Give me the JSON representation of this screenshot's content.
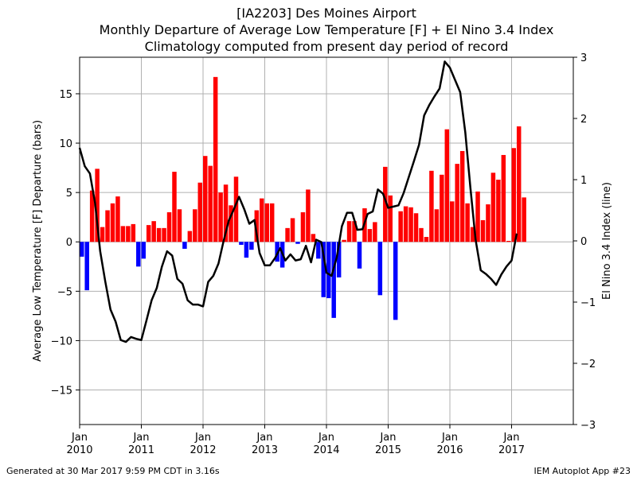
{
  "chart_data": {
    "type": "bar",
    "title": "[IA2203] Des Moines Airport",
    "subtitle": "Monthly Departure of Average Low Temperature [F] + El Nino 3.4 Index",
    "subtitle2": "Climatology computed from present day period of record",
    "ylabel_left": "Average Low Temperature [F] Departure (bars)",
    "ylabel_right": "El Nino 3.4 Index (line)",
    "ylim_left": [
      -18.5,
      18.7
    ],
    "ylim_right": [
      -3,
      3
    ],
    "yticks_left": [
      -15,
      -10,
      -5,
      0,
      5,
      10,
      15
    ],
    "yticks_right": [
      -3,
      -2,
      -1,
      0,
      1,
      2,
      3
    ],
    "xlim": [
      "2010-01",
      "2018-01"
    ],
    "xticks": [
      {
        "month": "2010-01",
        "label1": "Jan",
        "label2": "2010"
      },
      {
        "month": "2011-01",
        "label1": "Jan",
        "label2": "2011"
      },
      {
        "month": "2012-01",
        "label1": "Jan",
        "label2": "2012"
      },
      {
        "month": "2013-01",
        "label1": "Jan",
        "label2": "2013"
      },
      {
        "month": "2014-01",
        "label1": "Jan",
        "label2": "2014"
      },
      {
        "month": "2015-01",
        "label1": "Jan",
        "label2": "2015"
      },
      {
        "month": "2016-01",
        "label1": "Jan",
        "label2": "2016"
      },
      {
        "month": "2017-01",
        "label1": "Jan",
        "label2": "2017"
      }
    ],
    "grid": true,
    "colors": {
      "positive": "#ff0000",
      "negative": "#0000ff",
      "line": "#000000"
    },
    "bars": {
      "start_month": "2010-01",
      "values": [
        -1.5,
        -4.9,
        5.2,
        7.4,
        1.5,
        3.2,
        3.9,
        4.6,
        1.6,
        1.6,
        1.8,
        -2.5,
        -1.7,
        1.7,
        2.1,
        1.4,
        1.4,
        3.0,
        7.1,
        3.3,
        -0.7,
        1.1,
        3.3,
        6.0,
        8.7,
        7.7,
        16.7,
        5.0,
        5.8,
        3.7,
        6.6,
        -0.3,
        -1.6,
        -0.8,
        3.2,
        4.4,
        3.9,
        3.9,
        -2.0,
        -2.6,
        1.4,
        2.4,
        -0.2,
        3.0,
        5.3,
        0.8,
        -1.7,
        -5.6,
        -5.7,
        -7.7,
        -3.6,
        0.2,
        2.1,
        2.1,
        -2.7,
        3.4,
        1.3,
        2.0,
        -5.4,
        7.6,
        4.7,
        -7.9,
        3.1,
        3.6,
        3.5,
        2.9,
        1.4,
        0.5,
        7.2,
        3.3,
        6.8,
        11.4,
        4.1,
        7.9,
        9.2,
        3.9,
        1.5,
        5.1,
        2.2,
        3.8,
        7.0,
        6.3,
        8.8,
        0.1,
        9.5,
        11.7,
        4.5
      ]
    },
    "line": {
      "start_month": "2010-01",
      "values": [
        1.52,
        1.22,
        1.1,
        0.62,
        -0.17,
        -0.67,
        -1.12,
        -1.32,
        -1.62,
        -1.65,
        -1.57,
        -1.6,
        -1.62,
        -1.3,
        -0.97,
        -0.77,
        -0.42,
        -0.17,
        -0.24,
        -0.62,
        -0.7,
        -0.97,
        -1.04,
        -1.04,
        -1.07,
        -0.67,
        -0.57,
        -0.37,
        0.0,
        0.33,
        0.52,
        0.72,
        0.52,
        0.28,
        0.34,
        -0.2,
        -0.4,
        -0.4,
        -0.28,
        -0.12,
        -0.32,
        -0.22,
        -0.32,
        -0.3,
        -0.08,
        -0.35,
        0.02,
        -0.02,
        -0.52,
        -0.57,
        -0.27,
        0.24,
        0.46,
        0.46,
        0.18,
        0.19,
        0.44,
        0.48,
        0.84,
        0.77,
        0.54,
        0.56,
        0.58,
        0.78,
        1.04,
        1.3,
        1.57,
        2.05,
        2.22,
        2.36,
        2.49,
        2.93,
        2.83,
        2.63,
        2.43,
        1.77,
        0.86,
        0.02,
        -0.48,
        -0.54,
        -0.62,
        -0.72,
        -0.55,
        -0.42,
        -0.32,
        0.12
      ]
    }
  },
  "footer": {
    "left": "Generated at 30 Mar 2017 9:59 PM CDT in 3.16s",
    "right": "IEM Autoplot App #23"
  }
}
